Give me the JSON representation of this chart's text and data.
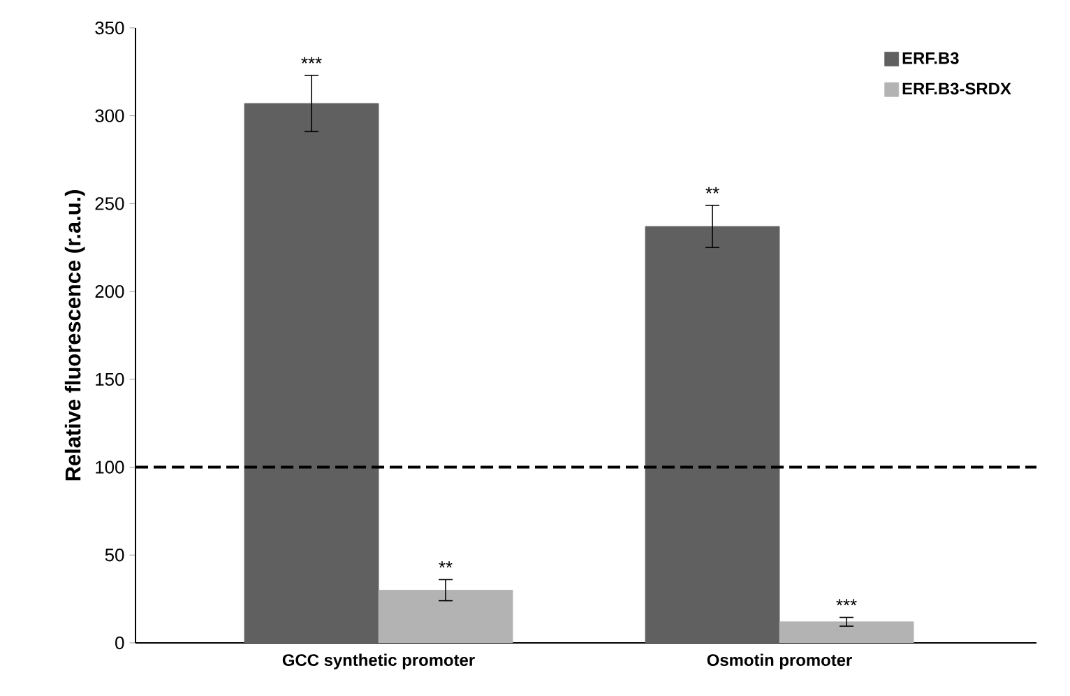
{
  "chart_data": {
    "type": "bar",
    "ylabel": "Relative fluorescence (r.a.u.)",
    "categories": [
      "GCC synthetic promoter",
      "Osmotin promoter"
    ],
    "series": [
      {
        "name": "ERF.B3",
        "color": "#606060",
        "values": [
          307,
          237
        ],
        "errors": [
          16,
          12
        ]
      },
      {
        "name": "ERF.B3-SRDX",
        "color": "#b3b3b3",
        "values": [
          30,
          12
        ],
        "errors": [
          6,
          2.5
        ]
      }
    ],
    "ylim": [
      0,
      350
    ],
    "yticks": [
      0,
      50,
      100,
      150,
      200,
      250,
      300,
      350
    ],
    "ref_lines": [
      {
        "axis": "y",
        "value": 100,
        "color": "#000000",
        "line_style": "dashed"
      }
    ],
    "annotations": [
      "***",
      "**",
      "**",
      "***"
    ],
    "legend": "top right",
    "grid": false
  }
}
